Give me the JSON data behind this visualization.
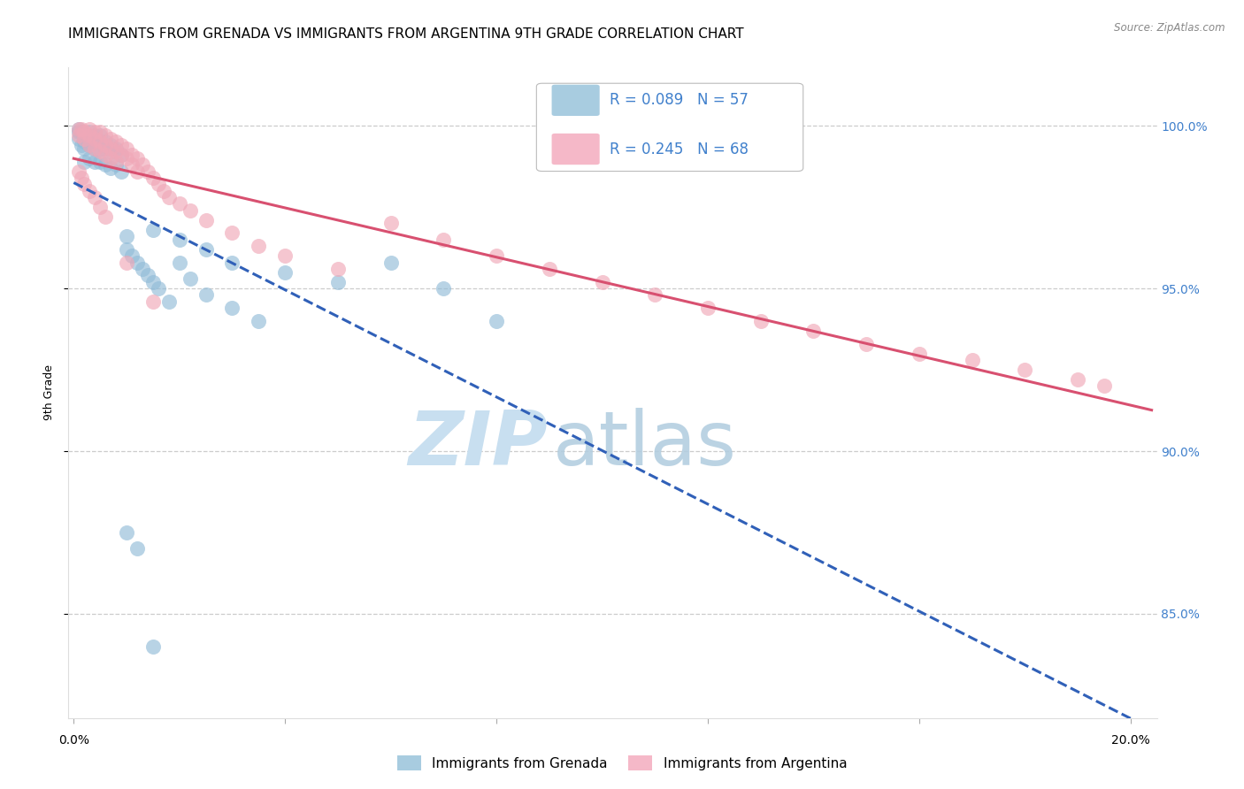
{
  "title": "IMMIGRANTS FROM GRENADA VS IMMIGRANTS FROM ARGENTINA 9TH GRADE CORRELATION CHART",
  "source": "Source: ZipAtlas.com",
  "ylabel": "9th Grade",
  "ytick_labels": [
    "85.0%",
    "90.0%",
    "95.0%",
    "100.0%"
  ],
  "ytick_values": [
    0.85,
    0.9,
    0.95,
    1.0
  ],
  "xlim": [
    -0.001,
    0.205
  ],
  "ylim": [
    0.818,
    1.018
  ],
  "grenada_x": [
    0.001,
    0.001,
    0.001,
    0.0015,
    0.0015,
    0.002,
    0.002,
    0.002,
    0.002,
    0.003,
    0.003,
    0.003,
    0.003,
    0.004,
    0.004,
    0.004,
    0.004,
    0.005,
    0.005,
    0.005,
    0.005,
    0.006,
    0.006,
    0.006,
    0.007,
    0.007,
    0.007,
    0.008,
    0.008,
    0.009,
    0.009,
    0.01,
    0.01,
    0.011,
    0.012,
    0.013,
    0.014,
    0.015,
    0.016,
    0.018,
    0.02,
    0.022,
    0.025,
    0.03,
    0.035,
    0.015,
    0.02,
    0.025,
    0.03,
    0.04,
    0.05,
    0.06,
    0.07,
    0.08,
    0.01,
    0.012,
    0.015
  ],
  "grenada_y": [
    0.999,
    0.998,
    0.996,
    0.998,
    0.994,
    0.997,
    0.995,
    0.993,
    0.989,
    0.998,
    0.996,
    0.994,
    0.99,
    0.997,
    0.995,
    0.993,
    0.989,
    0.997,
    0.995,
    0.993,
    0.989,
    0.995,
    0.993,
    0.988,
    0.994,
    0.992,
    0.987,
    0.993,
    0.988,
    0.991,
    0.986,
    0.966,
    0.962,
    0.96,
    0.958,
    0.956,
    0.954,
    0.952,
    0.95,
    0.946,
    0.958,
    0.953,
    0.948,
    0.944,
    0.94,
    0.968,
    0.965,
    0.962,
    0.958,
    0.955,
    0.952,
    0.958,
    0.95,
    0.94,
    0.875,
    0.87,
    0.84
  ],
  "argentina_x": [
    0.001,
    0.001,
    0.0015,
    0.002,
    0.002,
    0.003,
    0.003,
    0.003,
    0.004,
    0.004,
    0.004,
    0.005,
    0.005,
    0.005,
    0.006,
    0.006,
    0.006,
    0.007,
    0.007,
    0.007,
    0.008,
    0.008,
    0.008,
    0.009,
    0.009,
    0.01,
    0.01,
    0.011,
    0.011,
    0.012,
    0.012,
    0.013,
    0.014,
    0.015,
    0.016,
    0.017,
    0.018,
    0.02,
    0.022,
    0.025,
    0.03,
    0.035,
    0.04,
    0.05,
    0.06,
    0.07,
    0.08,
    0.09,
    0.1,
    0.11,
    0.12,
    0.13,
    0.14,
    0.15,
    0.16,
    0.17,
    0.18,
    0.19,
    0.195,
    0.001,
    0.0015,
    0.002,
    0.003,
    0.004,
    0.005,
    0.006,
    0.01,
    0.015
  ],
  "argentina_y": [
    0.999,
    0.997,
    0.999,
    0.998,
    0.996,
    0.999,
    0.997,
    0.994,
    0.998,
    0.996,
    0.993,
    0.998,
    0.995,
    0.992,
    0.997,
    0.994,
    0.991,
    0.996,
    0.993,
    0.99,
    0.995,
    0.992,
    0.989,
    0.994,
    0.991,
    0.993,
    0.99,
    0.991,
    0.988,
    0.99,
    0.986,
    0.988,
    0.986,
    0.984,
    0.982,
    0.98,
    0.978,
    0.976,
    0.974,
    0.971,
    0.967,
    0.963,
    0.96,
    0.956,
    0.97,
    0.965,
    0.96,
    0.956,
    0.952,
    0.948,
    0.944,
    0.94,
    0.937,
    0.933,
    0.93,
    0.928,
    0.925,
    0.922,
    0.92,
    0.986,
    0.984,
    0.982,
    0.98,
    0.978,
    0.975,
    0.972,
    0.958,
    0.946
  ],
  "grenada_color": "#92bcd8",
  "argentina_color": "#f0a8b8",
  "grenada_line_color": "#3060b8",
  "argentina_line_color": "#d85070",
  "legend_grenada_color": "#a8cce0",
  "legend_argentina_color": "#f5b8c8",
  "R_grenada": "0.089",
  "N_grenada": "57",
  "R_argentina": "0.245",
  "N_argentina": "68",
  "grid_color": "#cccccc",
  "right_tick_color": "#4080cc",
  "background_color": "#ffffff",
  "title_fontsize": 11,
  "tick_fontsize": 10,
  "watermark_zip_color": "#c8dff0",
  "watermark_atlas_color": "#b0ccdf"
}
